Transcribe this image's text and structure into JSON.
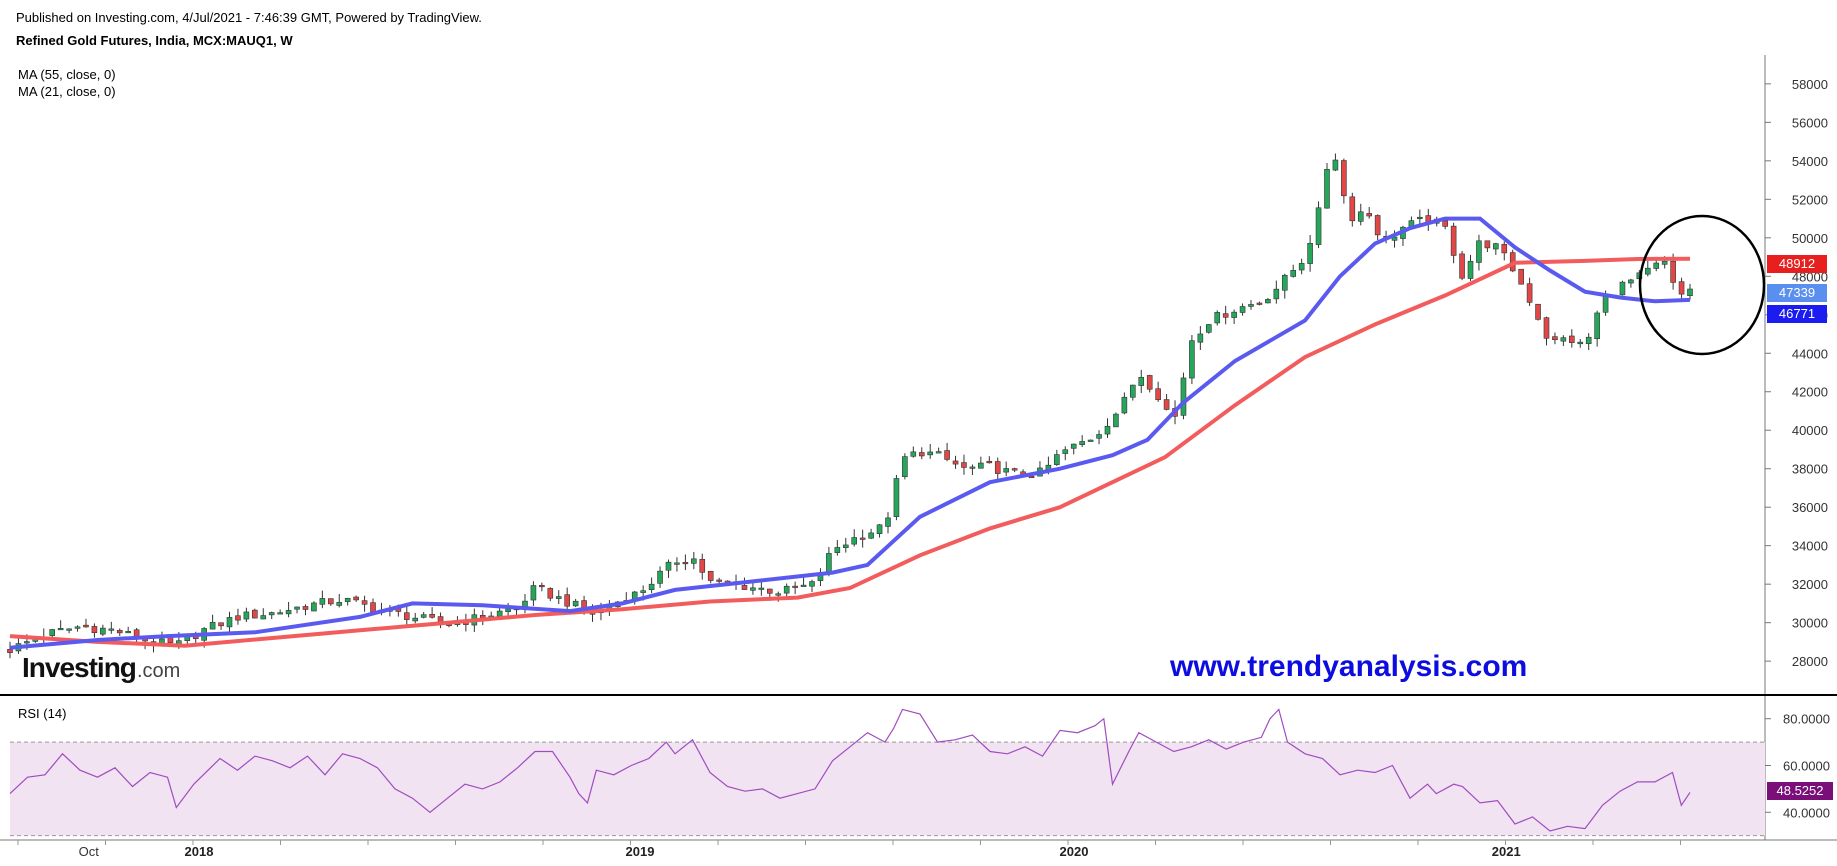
{
  "header": {
    "published": "Published on Investing.com, 4/Jul/2021 - 7:46:39 GMT, Powered by TradingView.",
    "title": "Refined Gold Futures, India, MCX:MAUQ1, W"
  },
  "legend": {
    "ma55": "MA (55, close, 0)",
    "ma21": "MA (21, close, 0)"
  },
  "rsi_label": "RSI (14)",
  "watermark": {
    "site": "www.trendyanalysis.com",
    "logo_main": "Investing",
    "logo_suffix": ".com"
  },
  "colors": {
    "up": "#26a65b",
    "down": "#e04848",
    "ma55": "#f25c5c",
    "ma21": "#5a5af0",
    "rsi_line": "#a04cc0",
    "rsi_band": "#f1e3f1",
    "circle": "#000000"
  },
  "price_tags": {
    "ma55": "48912",
    "last": "47339",
    "ma21": "46771",
    "rsi": "48.5252"
  },
  "chart_data": [
    {
      "type": "candlestick",
      "title": "Refined Gold Futures, India, MCX:MAUQ1, W",
      "ylim": [
        26500,
        59500
      ],
      "price_ticks": [
        "28000",
        "30000",
        "32000",
        "34000",
        "36000",
        "38000",
        "40000",
        "42000",
        "44000",
        "46000",
        "48000",
        "50000",
        "52000",
        "54000",
        "56000",
        "58000"
      ],
      "x_labels": [
        {
          "label": "Oct",
          "t": 0.045
        },
        {
          "label": "2018",
          "t": 0.108,
          "bold": true
        },
        {
          "label": "2019",
          "t": 0.36,
          "bold": true
        },
        {
          "label": "2020",
          "t": 0.608,
          "bold": true
        },
        {
          "label": "2021",
          "t": 0.855,
          "bold": true
        }
      ],
      "close_path": [
        [
          0.0,
          28600
        ],
        [
          0.02,
          29400
        ],
        [
          0.04,
          29800
        ],
        [
          0.06,
          29600
        ],
        [
          0.08,
          29000
        ],
        [
          0.095,
          28800
        ],
        [
          0.11,
          29600
        ],
        [
          0.13,
          30300
        ],
        [
          0.15,
          30500
        ],
        [
          0.17,
          30900
        ],
        [
          0.19,
          31200
        ],
        [
          0.21,
          30700
        ],
        [
          0.23,
          30300
        ],
        [
          0.25,
          29900
        ],
        [
          0.27,
          30300
        ],
        [
          0.29,
          30800
        ],
        [
          0.3,
          31800
        ],
        [
          0.32,
          31000
        ],
        [
          0.335,
          30400
        ],
        [
          0.345,
          31000
        ],
        [
          0.36,
          31600
        ],
        [
          0.38,
          33200
        ],
        [
          0.39,
          33400
        ],
        [
          0.4,
          32100
        ],
        [
          0.42,
          31900
        ],
        [
          0.44,
          31600
        ],
        [
          0.46,
          32000
        ],
        [
          0.47,
          33800
        ],
        [
          0.485,
          34500
        ],
        [
          0.5,
          35000
        ],
        [
          0.51,
          38500
        ],
        [
          0.52,
          38900
        ],
        [
          0.53,
          38700
        ],
        [
          0.545,
          38000
        ],
        [
          0.56,
          38100
        ],
        [
          0.575,
          37700
        ],
        [
          0.59,
          37800
        ],
        [
          0.6,
          38800
        ],
        [
          0.62,
          39700
        ],
        [
          0.635,
          41200
        ],
        [
          0.645,
          43000
        ],
        [
          0.655,
          42000
        ],
        [
          0.665,
          40400
        ],
        [
          0.675,
          44700
        ],
        [
          0.685,
          45700
        ],
        [
          0.7,
          46300
        ],
        [
          0.715,
          46700
        ],
        [
          0.725,
          47500
        ],
        [
          0.74,
          49000
        ],
        [
          0.75,
          52000
        ],
        [
          0.755,
          55200
        ],
        [
          0.765,
          51000
        ],
        [
          0.775,
          51500
        ],
        [
          0.785,
          49700
        ],
        [
          0.795,
          50500
        ],
        [
          0.81,
          51000
        ],
        [
          0.82,
          50500
        ],
        [
          0.83,
          48000
        ],
        [
          0.84,
          49800
        ],
        [
          0.85,
          49500
        ],
        [
          0.86,
          48200
        ],
        [
          0.87,
          46500
        ],
        [
          0.88,
          44500
        ],
        [
          0.89,
          44800
        ],
        [
          0.9,
          44300
        ],
        [
          0.91,
          46800
        ],
        [
          0.92,
          47500
        ],
        [
          0.93,
          47900
        ],
        [
          0.945,
          48800
        ],
        [
          0.953,
          46900
        ],
        [
          0.96,
          47339
        ]
      ],
      "series": [
        {
          "name": "MA (55, close, 0)",
          "values": [
            [
              0.0,
              29300
            ],
            [
              0.05,
              29000
            ],
            [
              0.1,
              28800
            ],
            [
              0.15,
              29200
            ],
            [
              0.2,
              29600
            ],
            [
              0.25,
              30000
            ],
            [
              0.3,
              30400
            ],
            [
              0.35,
              30700
            ],
            [
              0.4,
              31100
            ],
            [
              0.45,
              31300
            ],
            [
              0.48,
              31800
            ],
            [
              0.52,
              33500
            ],
            [
              0.56,
              34900
            ],
            [
              0.6,
              36000
            ],
            [
              0.63,
              37300
            ],
            [
              0.66,
              38600
            ],
            [
              0.7,
              41300
            ],
            [
              0.74,
              43800
            ],
            [
              0.78,
              45500
            ],
            [
              0.82,
              47000
            ],
            [
              0.86,
              48700
            ],
            [
              0.9,
              48800
            ],
            [
              0.93,
              48900
            ],
            [
              0.96,
              48912
            ]
          ]
        },
        {
          "name": "MA (21, close, 0)",
          "values": [
            [
              0.0,
              28700
            ],
            [
              0.05,
              29100
            ],
            [
              0.09,
              29300
            ],
            [
              0.14,
              29500
            ],
            [
              0.2,
              30300
            ],
            [
              0.23,
              31000
            ],
            [
              0.27,
              30900
            ],
            [
              0.32,
              30600
            ],
            [
              0.35,
              31000
            ],
            [
              0.38,
              31700
            ],
            [
              0.42,
              32100
            ],
            [
              0.47,
              32600
            ],
            [
              0.49,
              33000
            ],
            [
              0.52,
              35500
            ],
            [
              0.56,
              37300
            ],
            [
              0.6,
              38000
            ],
            [
              0.63,
              38700
            ],
            [
              0.65,
              39500
            ],
            [
              0.67,
              41400
            ],
            [
              0.7,
              43600
            ],
            [
              0.74,
              45700
            ],
            [
              0.76,
              48000
            ],
            [
              0.78,
              49700
            ],
            [
              0.8,
              50500
            ],
            [
              0.82,
              51000
            ],
            [
              0.84,
              51000
            ],
            [
              0.86,
              49500
            ],
            [
              0.88,
              48300
            ],
            [
              0.9,
              47200
            ],
            [
              0.92,
              46900
            ],
            [
              0.94,
              46700
            ],
            [
              0.96,
              46771
            ]
          ]
        }
      ]
    },
    {
      "type": "line",
      "title": "RSI (14)",
      "ylim": [
        29,
        88
      ],
      "ticks": [
        "40.0000",
        "60.0000",
        "80.0000"
      ],
      "band": [
        30,
        70
      ],
      "values": [
        [
          0.0,
          48
        ],
        [
          0.01,
          55
        ],
        [
          0.02,
          56
        ],
        [
          0.03,
          65
        ],
        [
          0.04,
          58
        ],
        [
          0.05,
          55
        ],
        [
          0.06,
          59
        ],
        [
          0.07,
          51
        ],
        [
          0.08,
          57
        ],
        [
          0.09,
          55
        ],
        [
          0.095,
          42
        ],
        [
          0.105,
          52
        ],
        [
          0.12,
          63
        ],
        [
          0.13,
          58
        ],
        [
          0.14,
          64
        ],
        [
          0.15,
          62
        ],
        [
          0.16,
          59
        ],
        [
          0.17,
          64
        ],
        [
          0.18,
          56
        ],
        [
          0.19,
          65
        ],
        [
          0.2,
          63
        ],
        [
          0.21,
          59
        ],
        [
          0.22,
          50
        ],
        [
          0.23,
          46
        ],
        [
          0.24,
          40
        ],
        [
          0.25,
          46
        ],
        [
          0.26,
          52
        ],
        [
          0.27,
          50
        ],
        [
          0.28,
          53
        ],
        [
          0.29,
          59
        ],
        [
          0.3,
          66
        ],
        [
          0.31,
          66
        ],
        [
          0.32,
          55
        ],
        [
          0.325,
          48
        ],
        [
          0.33,
          44
        ],
        [
          0.335,
          58
        ],
        [
          0.345,
          56
        ],
        [
          0.355,
          60
        ],
        [
          0.365,
          63
        ],
        [
          0.375,
          70
        ],
        [
          0.38,
          65
        ],
        [
          0.39,
          71
        ],
        [
          0.4,
          57
        ],
        [
          0.41,
          51
        ],
        [
          0.42,
          49
        ],
        [
          0.43,
          50
        ],
        [
          0.44,
          46
        ],
        [
          0.45,
          48
        ],
        [
          0.46,
          50
        ],
        [
          0.47,
          62
        ],
        [
          0.48,
          68
        ],
        [
          0.49,
          74
        ],
        [
          0.5,
          70
        ],
        [
          0.505,
          76
        ],
        [
          0.51,
          84
        ],
        [
          0.52,
          82
        ],
        [
          0.53,
          70
        ],
        [
          0.54,
          71
        ],
        [
          0.55,
          73
        ],
        [
          0.56,
          66
        ],
        [
          0.57,
          65
        ],
        [
          0.58,
          68
        ],
        [
          0.59,
          64
        ],
        [
          0.6,
          75
        ],
        [
          0.61,
          74
        ],
        [
          0.62,
          77
        ],
        [
          0.625,
          80
        ],
        [
          0.63,
          52
        ],
        [
          0.64,
          67
        ],
        [
          0.645,
          74
        ],
        [
          0.655,
          70
        ],
        [
          0.665,
          66
        ],
        [
          0.675,
          68
        ],
        [
          0.685,
          71
        ],
        [
          0.695,
          67
        ],
        [
          0.705,
          70
        ],
        [
          0.715,
          72
        ],
        [
          0.72,
          80
        ],
        [
          0.725,
          84
        ],
        [
          0.73,
          70
        ],
        [
          0.74,
          65
        ],
        [
          0.75,
          63
        ],
        [
          0.76,
          56
        ],
        [
          0.77,
          58
        ],
        [
          0.78,
          57
        ],
        [
          0.79,
          60
        ],
        [
          0.8,
          46
        ],
        [
          0.81,
          52
        ],
        [
          0.815,
          48
        ],
        [
          0.825,
          52
        ],
        [
          0.83,
          51
        ],
        [
          0.84,
          44
        ],
        [
          0.85,
          45
        ],
        [
          0.86,
          35
        ],
        [
          0.87,
          38
        ],
        [
          0.88,
          32
        ],
        [
          0.89,
          34
        ],
        [
          0.9,
          33
        ],
        [
          0.91,
          43
        ],
        [
          0.92,
          49
        ],
        [
          0.93,
          53
        ],
        [
          0.94,
          53
        ],
        [
          0.95,
          57
        ],
        [
          0.955,
          43
        ],
        [
          0.96,
          48.5
        ]
      ]
    }
  ]
}
